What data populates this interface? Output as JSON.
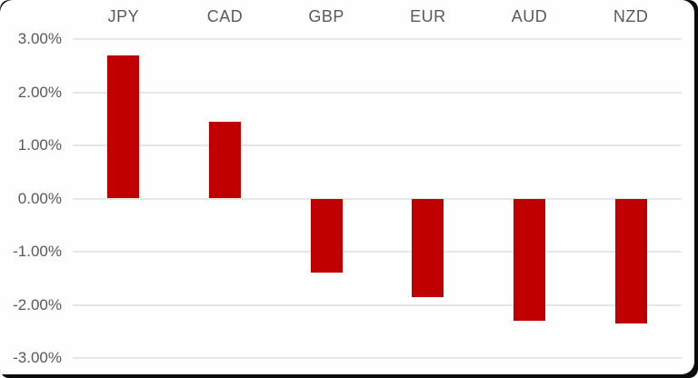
{
  "chart_data": {
    "type": "bar",
    "title": "",
    "xlabel": "",
    "ylabel": "",
    "categories": [
      "JPY",
      "CAD",
      "GBP",
      "EUR",
      "AUD",
      "NZD"
    ],
    "values": [
      2.7,
      1.45,
      -1.4,
      -1.85,
      -2.3,
      -2.35
    ],
    "value_unit": "%",
    "y_ticks": [
      {
        "value": 3,
        "label": "3.00%"
      },
      {
        "value": 2,
        "label": "2.00%"
      },
      {
        "value": 1,
        "label": "1.00%"
      },
      {
        "value": 0,
        "label": "0.00%"
      },
      {
        "value": -1,
        "label": "-1.00%"
      },
      {
        "value": -2,
        "label": "-2.00%"
      },
      {
        "value": -3,
        "label": "-3.00%"
      }
    ],
    "ylim": [
      -3,
      3
    ],
    "grid": true,
    "legend": false,
    "colors": {
      "bar": "#c00000",
      "gridline": "#e7e7e7",
      "tick_label": "#595959",
      "category_label": "#595959",
      "frame_border": "#0b0b0b",
      "background": "#fefefe"
    }
  }
}
